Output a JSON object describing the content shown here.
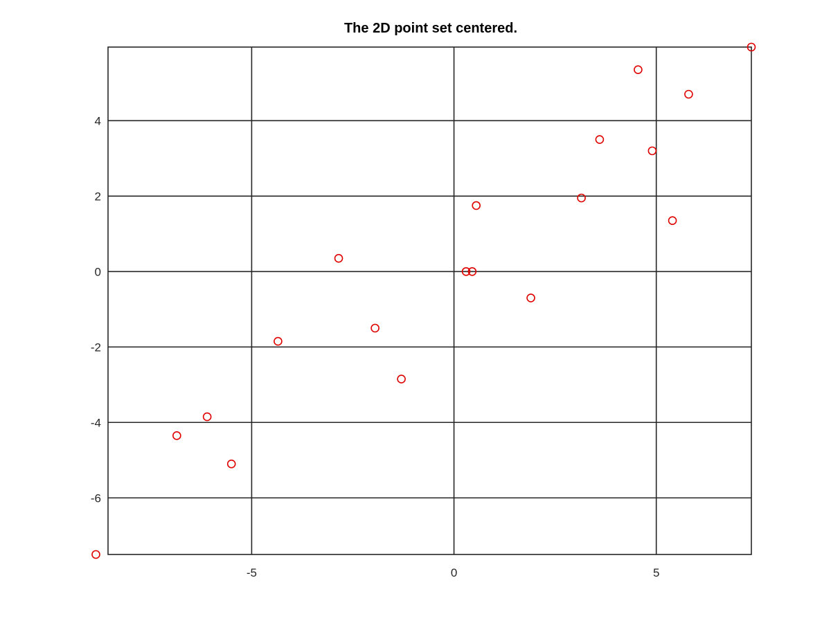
{
  "chart_data": {
    "type": "scatter",
    "title": "The 2D point set centered.",
    "xlabel": "",
    "ylabel": "",
    "xlim": [
      -8.55,
      7.35
    ],
    "ylim": [
      -7.5,
      5.95
    ],
    "xticks": [
      -5,
      0,
      5
    ],
    "yticks": [
      -6,
      -4,
      -2,
      0,
      2,
      4
    ],
    "xtick_labels": [
      "-5",
      "0",
      "5"
    ],
    "ytick_labels": [
      "-6",
      "-4",
      "-2",
      "0",
      "2",
      "4"
    ],
    "grid": true,
    "marker": "circle-open",
    "colors": {
      "marker": "#e00000",
      "axes": "#262626"
    },
    "series": [
      {
        "x": [
          -8.85,
          -6.85,
          -6.1,
          -5.5,
          -4.35,
          -2.85,
          -1.95,
          -1.3,
          0.3,
          0.45,
          0.55,
          1.9,
          3.15,
          3.6,
          4.55,
          4.9,
          5.4,
          5.8,
          7.35
        ],
        "y": [
          -7.5,
          -4.35,
          -3.85,
          -5.1,
          -1.85,
          0.35,
          -1.5,
          -2.85,
          0.0,
          0.0,
          1.75,
          -0.7,
          1.95,
          3.5,
          5.35,
          3.2,
          1.35,
          4.7,
          5.95
        ]
      }
    ]
  }
}
